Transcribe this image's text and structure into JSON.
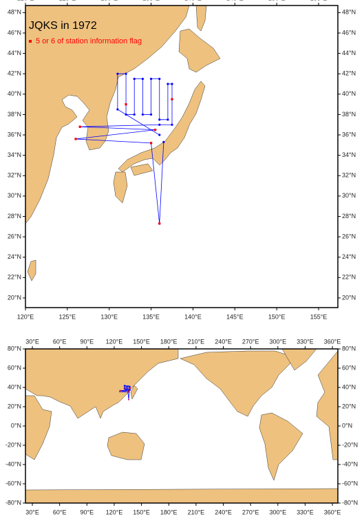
{
  "maps": [
    {
      "title": "JQKS in 1972",
      "legend": "5 or 6 of station information flag",
      "xlim": [
        120,
        157.3
      ],
      "ylim": [
        19.05,
        48.7
      ],
      "xticks": [
        {
          "value": 120,
          "label": "120°E"
        },
        {
          "value": 125,
          "label": "125°E"
        },
        {
          "value": 130,
          "label": "130°E"
        },
        {
          "value": 135,
          "label": "135°E"
        },
        {
          "value": 140,
          "label": "140°E"
        },
        {
          "value": 145,
          "label": "145°E"
        },
        {
          "value": 150,
          "label": "150°E"
        },
        {
          "value": 155,
          "label": "155°E"
        }
      ],
      "yticks": [
        {
          "value": 20,
          "label": "20°N"
        },
        {
          "value": 22,
          "label": "22°N"
        },
        {
          "value": 24,
          "label": "24°N"
        },
        {
          "value": 26,
          "label": "26°N"
        },
        {
          "value": 28,
          "label": "28°N"
        },
        {
          "value": 30,
          "label": "30°N"
        },
        {
          "value": 32,
          "label": "32°N"
        },
        {
          "value": 34,
          "label": "34°N"
        },
        {
          "value": 36,
          "label": "36°N"
        },
        {
          "value": 38,
          "label": "38°N"
        },
        {
          "value": 40,
          "label": "40°N"
        },
        {
          "value": 42,
          "label": "42°N"
        },
        {
          "value": 44,
          "label": "44°N"
        },
        {
          "value": 46,
          "label": "46°N"
        },
        {
          "value": 48,
          "label": "48°N"
        }
      ]
    },
    {
      "xlim": [
        22.4,
        366
      ],
      "ylim": [
        -80,
        80
      ],
      "xticks": [
        {
          "value": 30,
          "label": "30°E"
        },
        {
          "value": 60,
          "label": "60°E"
        },
        {
          "value": 90,
          "label": "90°E"
        },
        {
          "value": 120,
          "label": "120°E"
        },
        {
          "value": 150,
          "label": "150°E"
        },
        {
          "value": 180,
          "label": "180°E"
        },
        {
          "value": 210,
          "label": "210°E"
        },
        {
          "value": 240,
          "label": "240°E"
        },
        {
          "value": 270,
          "label": "270°E"
        },
        {
          "value": 300,
          "label": "300°E"
        },
        {
          "value": 330,
          "label": "330°E"
        },
        {
          "value": 360,
          "label": "360°E"
        }
      ],
      "yticks": [
        {
          "value": -80,
          "label": "-80°N"
        },
        {
          "value": -60,
          "label": "-60°N"
        },
        {
          "value": -40,
          "label": "-40°N"
        },
        {
          "value": -20,
          "label": "-20°N"
        },
        {
          "value": 0,
          "label": "0°N"
        },
        {
          "value": 20,
          "label": "20°N"
        },
        {
          "value": 40,
          "label": "40°N"
        },
        {
          "value": 60,
          "label": "60°N"
        },
        {
          "value": 80,
          "label": "80°N"
        }
      ]
    }
  ],
  "stations": {
    "color": "#0000ff",
    "lon": [
      136.0,
      131.0,
      131.0,
      132.0,
      132.0,
      133.0,
      133.0,
      134.0,
      134.0,
      135.0,
      135.0,
      136.0,
      136.0,
      137.0,
      137.0,
      137.5,
      137.5,
      136.0,
      126.5,
      135.5,
      126.0,
      135.0,
      136.0,
      136.5
    ],
    "lat": [
      36.0,
      38.5,
      42.0,
      42.0,
      38.0,
      38.0,
      41.5,
      41.5,
      38.0,
      38.0,
      41.5,
      41.5,
      37.5,
      37.5,
      41.0,
      41.0,
      37.0,
      37.0,
      36.8,
      36.5,
      35.6,
      35.2,
      27.3,
      35.3
    ]
  },
  "flagged": {
    "color": "#ff0000",
    "lon": [
      126.5,
      126.0,
      136.0,
      135.0,
      132.0,
      137.5,
      135.5
    ],
    "lat": [
      36.8,
      35.6,
      27.3,
      35.2,
      39.0,
      39.5,
      36.5
    ]
  }
}
